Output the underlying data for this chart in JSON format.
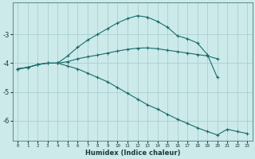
{
  "xlabel": "Humidex (Indice chaleur)",
  "bg_color": "#cceaea",
  "grid_color": "#aacfcf",
  "line_color": "#1a6b6b",
  "ylim": [
    -6.7,
    -1.9
  ],
  "xlim": [
    -0.5,
    23.5
  ],
  "yticks": [
    -6,
    -5,
    -4,
    -3
  ],
  "x_ticks": [
    0,
    1,
    2,
    3,
    4,
    5,
    6,
    7,
    8,
    9,
    10,
    11,
    12,
    13,
    14,
    15,
    16,
    17,
    18,
    19,
    20,
    21,
    22,
    23
  ],
  "line1_y": [
    -4.2,
    -4.15,
    -4.05,
    -4.0,
    -4.0,
    -3.75,
    -3.45,
    -3.2,
    -3.0,
    -2.8,
    -2.6,
    -2.45,
    -2.35,
    -2.4,
    -2.55,
    -2.75,
    -3.05,
    -3.15,
    -3.3,
    -3.7,
    -4.5,
    null,
    null,
    null
  ],
  "line2_y": [
    -4.2,
    -4.15,
    -4.05,
    -4.0,
    -4.0,
    -3.95,
    -3.85,
    -3.78,
    -3.72,
    -3.65,
    -3.58,
    -3.52,
    -3.48,
    -3.47,
    -3.5,
    -3.55,
    -3.6,
    -3.65,
    -3.7,
    -3.75,
    -3.85,
    null,
    null,
    null
  ],
  "line3_y": [
    -4.2,
    -4.15,
    -4.05,
    -4.0,
    -4.0,
    -4.1,
    -4.2,
    -4.35,
    -4.5,
    -4.65,
    -4.85,
    -5.05,
    -5.25,
    -5.45,
    -5.6,
    -5.78,
    -5.95,
    -6.1,
    -6.25,
    -6.38,
    -6.5,
    -6.3,
    -6.38,
    -6.45
  ]
}
